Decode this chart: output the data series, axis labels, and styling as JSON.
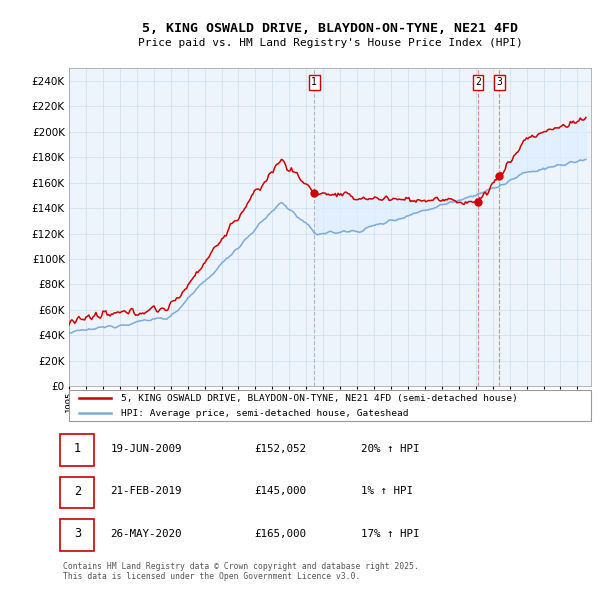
{
  "title": "5, KING OSWALD DRIVE, BLAYDON-ON-TYNE, NE21 4FD",
  "subtitle": "Price paid vs. HM Land Registry's House Price Index (HPI)",
  "ylim": [
    0,
    250000
  ],
  "ytick_vals": [
    0,
    20000,
    40000,
    60000,
    80000,
    100000,
    120000,
    140000,
    160000,
    180000,
    200000,
    220000,
    240000
  ],
  "xlim_start": 1995.0,
  "xlim_end": 2025.8,
  "legend_line1": "5, KING OSWALD DRIVE, BLAYDON-ON-TYNE, NE21 4FD (semi-detached house)",
  "legend_line2": "HPI: Average price, semi-detached house, Gateshead",
  "line_color_red": "#cc0000",
  "line_color_blue": "#7aabdc",
  "vline_color_grey": "#aabbcc",
  "vline_color_red": "#dd8888",
  "fill_color": "#ddeeff",
  "sale1_date": 2009.47,
  "sale1_price": 152052,
  "sale1_label": "1",
  "sale2_date": 2019.13,
  "sale2_price": 145000,
  "sale2_label": "2",
  "sale3_date": 2020.4,
  "sale3_price": 165000,
  "sale3_label": "3",
  "footer": "Contains HM Land Registry data © Crown copyright and database right 2025.\nThis data is licensed under the Open Government Licence v3.0.",
  "table_data": [
    [
      "1",
      "19-JUN-2009",
      "£152,052",
      "20% ↑ HPI"
    ],
    [
      "2",
      "21-FEB-2019",
      "£145,000",
      "1% ↑ HPI"
    ],
    [
      "3",
      "26-MAY-2020",
      "£165,000",
      "17% ↑ HPI"
    ]
  ],
  "grid_color": "#ccdcec",
  "plot_bg_color": "#eef4fb"
}
